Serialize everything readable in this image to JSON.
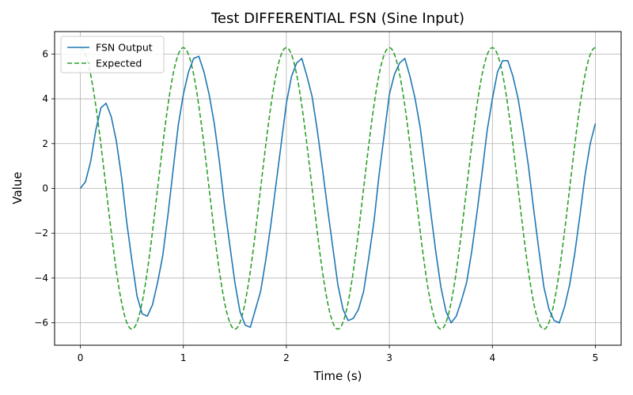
{
  "chart_data": {
    "type": "line",
    "title": "Test DIFFERENTIAL FSN (Sine Input)",
    "xlabel": "Time (s)",
    "ylabel": "Value",
    "xlim": [
      -0.25,
      5.25
    ],
    "ylim": [
      -7,
      7
    ],
    "xticks": [
      0,
      1,
      2,
      3,
      4,
      5
    ],
    "yticks": [
      -6,
      -4,
      -2,
      0,
      2,
      4,
      6
    ],
    "grid": true,
    "legend_position": "top-left",
    "series": [
      {
        "name": "FSN Output",
        "color": "#1f77b4",
        "style": "solid",
        "x": [
          0,
          0.05,
          0.1,
          0.15,
          0.2,
          0.25,
          0.3,
          0.35,
          0.4,
          0.45,
          0.5,
          0.55,
          0.6,
          0.65,
          0.7,
          0.75,
          0.8,
          0.85,
          0.9,
          0.95,
          1.0,
          1.05,
          1.1,
          1.15,
          1.2,
          1.25,
          1.3,
          1.35,
          1.4,
          1.45,
          1.5,
          1.55,
          1.6,
          1.65,
          1.7,
          1.75,
          1.8,
          1.85,
          1.9,
          1.95,
          2.0,
          2.05,
          2.1,
          2.15,
          2.2,
          2.25,
          2.3,
          2.35,
          2.4,
          2.45,
          2.5,
          2.55,
          2.6,
          2.65,
          2.7,
          2.75,
          2.8,
          2.85,
          2.9,
          2.95,
          3.0,
          3.05,
          3.1,
          3.15,
          3.2,
          3.25,
          3.3,
          3.35,
          3.4,
          3.45,
          3.5,
          3.55,
          3.6,
          3.65,
          3.7,
          3.75,
          3.8,
          3.85,
          3.9,
          3.95,
          4.0,
          4.05,
          4.1,
          4.15,
          4.2,
          4.25,
          4.3,
          4.35,
          4.4,
          4.45,
          4.5,
          4.55,
          4.6,
          4.65,
          4.7,
          4.75,
          4.8,
          4.85,
          4.9,
          4.95,
          5.0
        ],
        "y": [
          0.0,
          0.3,
          1.2,
          2.6,
          3.6,
          3.8,
          3.2,
          2.1,
          0.5,
          -1.5,
          -3.2,
          -4.8,
          -5.6,
          -5.7,
          -5.2,
          -4.2,
          -3.0,
          -1.2,
          0.8,
          2.8,
          4.2,
          5.2,
          5.8,
          5.9,
          5.2,
          4.2,
          2.9,
          1.2,
          -0.8,
          -2.5,
          -4.2,
          -5.5,
          -6.1,
          -6.2,
          -5.4,
          -4.6,
          -3.2,
          -1.6,
          0.2,
          2.0,
          3.8,
          5.0,
          5.6,
          5.8,
          5.0,
          4.1,
          2.6,
          0.9,
          -0.9,
          -2.6,
          -4.3,
          -5.4,
          -5.9,
          -5.8,
          -5.4,
          -4.6,
          -3.1,
          -1.5,
          0.6,
          2.4,
          4.2,
          5.1,
          5.6,
          5.8,
          5.0,
          4.0,
          2.7,
          0.9,
          -1.0,
          -2.8,
          -4.4,
          -5.5,
          -6.0,
          -5.7,
          -5.0,
          -4.2,
          -2.8,
          -1.1,
          0.7,
          2.6,
          4.0,
          5.2,
          5.7,
          5.7,
          5.0,
          4.0,
          2.6,
          1.0,
          -0.9,
          -2.7,
          -4.4,
          -5.4,
          -5.9,
          -6.0,
          -5.3,
          -4.3,
          -2.9,
          -1.2,
          0.6,
          2.0,
          2.9
        ]
      },
      {
        "name": "Expected",
        "color": "#2ca02c",
        "style": "dashed",
        "function": "2*pi*cos(2*pi*t)"
      }
    ]
  }
}
